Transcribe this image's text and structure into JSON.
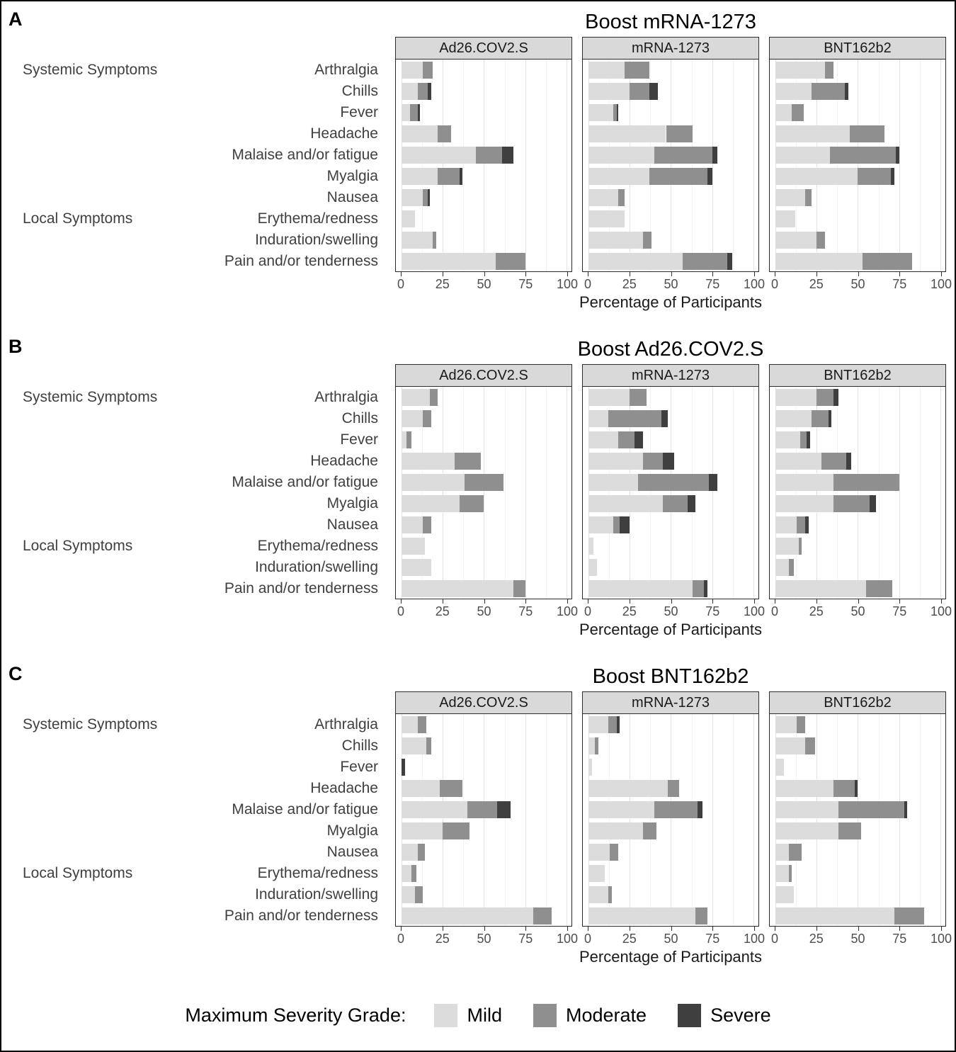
{
  "legend": {
    "title": "Maximum Severity Grade:"
  },
  "chart_data": {
    "type": "bar",
    "orientation": "horizontal",
    "stacked": true,
    "xlabel": "Percentage of Participants",
    "xlim": [
      0,
      100
    ],
    "x_ticks": [
      0,
      25,
      50,
      75,
      100
    ],
    "x_minor": [
      12.5,
      37.5,
      62.5,
      87.5
    ],
    "grid": true,
    "legend_position": "bottom",
    "severity_levels": [
      "Mild",
      "Moderate",
      "Severe"
    ],
    "colors": {
      "Mild": "#dcdcdc",
      "Moderate": "#8f8f8f",
      "Severe": "#3f3f3f"
    },
    "strip_background": "#d9d9d9",
    "categories": [
      "Arthralgia",
      "Chills",
      "Fever",
      "Headache",
      "Malaise and/or fatigue",
      "Myalgia",
      "Nausea",
      "Erythema/redness",
      "Induration/swelling",
      "Pain and/or tenderness"
    ],
    "group_labels": [
      {
        "label": "Systemic Symptoms",
        "row": 0
      },
      {
        "label": "Local Symptoms",
        "row": 7
      }
    ],
    "facets": [
      "Ad26.COV2.S",
      "mRNA-1273",
      "BNT162b2"
    ],
    "series_note": "values are [Mild, Moderate, Severe] percentages per category row",
    "panels": [
      {
        "letter": "A",
        "title": "Boost mRNA-1273",
        "values": [
          [
            [
              13,
              6,
              0
            ],
            [
              10,
              6,
              2
            ],
            [
              5,
              5,
              1
            ],
            [
              22,
              8,
              0
            ],
            [
              45,
              16,
              7
            ],
            [
              22,
              13,
              2
            ],
            [
              13,
              3,
              1
            ],
            [
              8,
              0,
              0
            ],
            [
              19,
              2,
              0
            ],
            [
              57,
              18,
              0
            ]
          ],
          [
            [
              22,
              15,
              0
            ],
            [
              25,
              12,
              5
            ],
            [
              15,
              2,
              1
            ],
            [
              47,
              16,
              0
            ],
            [
              40,
              35,
              3
            ],
            [
              37,
              35,
              3
            ],
            [
              18,
              4,
              0
            ],
            [
              22,
              0,
              0
            ],
            [
              33,
              5,
              0
            ],
            [
              57,
              27,
              3
            ]
          ],
          [
            [
              30,
              5,
              0
            ],
            [
              22,
              20,
              2
            ],
            [
              10,
              7,
              0
            ],
            [
              45,
              21,
              0
            ],
            [
              33,
              40,
              2
            ],
            [
              50,
              20,
              2
            ],
            [
              18,
              4,
              0
            ],
            [
              12,
              0,
              0
            ],
            [
              25,
              5,
              0
            ],
            [
              53,
              30,
              0
            ]
          ]
        ]
      },
      {
        "letter": "B",
        "title": "Boost Ad26.COV2.S",
        "values": [
          [
            [
              17,
              5,
              0
            ],
            [
              13,
              5,
              0
            ],
            [
              3,
              3,
              0
            ],
            [
              32,
              16,
              0
            ],
            [
              38,
              24,
              0
            ],
            [
              35,
              15,
              0
            ],
            [
              13,
              5,
              0
            ],
            [
              14,
              0,
              0
            ],
            [
              18,
              0,
              0
            ],
            [
              68,
              7,
              0
            ]
          ],
          [
            [
              25,
              10,
              0
            ],
            [
              12,
              32,
              4
            ],
            [
              18,
              10,
              5
            ],
            [
              33,
              12,
              7
            ],
            [
              30,
              43,
              5
            ],
            [
              45,
              15,
              5
            ],
            [
              15,
              4,
              6
            ],
            [
              3,
              0,
              0
            ],
            [
              5,
              0,
              0
            ],
            [
              63,
              7,
              2
            ]
          ],
          [
            [
              25,
              10,
              3
            ],
            [
              22,
              10,
              2
            ],
            [
              15,
              4,
              2
            ],
            [
              28,
              15,
              3
            ],
            [
              35,
              40,
              0
            ],
            [
              35,
              22,
              4
            ],
            [
              13,
              5,
              2
            ],
            [
              14,
              2,
              0
            ],
            [
              8,
              3,
              0
            ],
            [
              55,
              16,
              0
            ]
          ]
        ]
      },
      {
        "letter": "C",
        "title": "Boost BNT162b2",
        "values": [
          [
            [
              10,
              5,
              0
            ],
            [
              15,
              3,
              0
            ],
            [
              0,
              0,
              2
            ],
            [
              23,
              14,
              0
            ],
            [
              40,
              18,
              8
            ],
            [
              25,
              16,
              0
            ],
            [
              10,
              4,
              0
            ],
            [
              6,
              3,
              0
            ],
            [
              8,
              5,
              0
            ],
            [
              80,
              11,
              0
            ]
          ],
          [
            [
              12,
              5,
              2
            ],
            [
              4,
              2,
              0
            ],
            [
              2,
              0,
              0
            ],
            [
              48,
              7,
              0
            ],
            [
              40,
              26,
              3
            ],
            [
              33,
              8,
              0
            ],
            [
              13,
              5,
              0
            ],
            [
              10,
              0,
              0
            ],
            [
              12,
              2,
              0
            ],
            [
              65,
              7,
              0
            ]
          ],
          [
            [
              13,
              5,
              0
            ],
            [
              18,
              6,
              0
            ],
            [
              5,
              0,
              0
            ],
            [
              35,
              13,
              2
            ],
            [
              38,
              40,
              2
            ],
            [
              38,
              14,
              0
            ],
            [
              8,
              8,
              0
            ],
            [
              8,
              2,
              0
            ],
            [
              11,
              0,
              0
            ],
            [
              72,
              18,
              0
            ]
          ]
        ]
      }
    ]
  }
}
